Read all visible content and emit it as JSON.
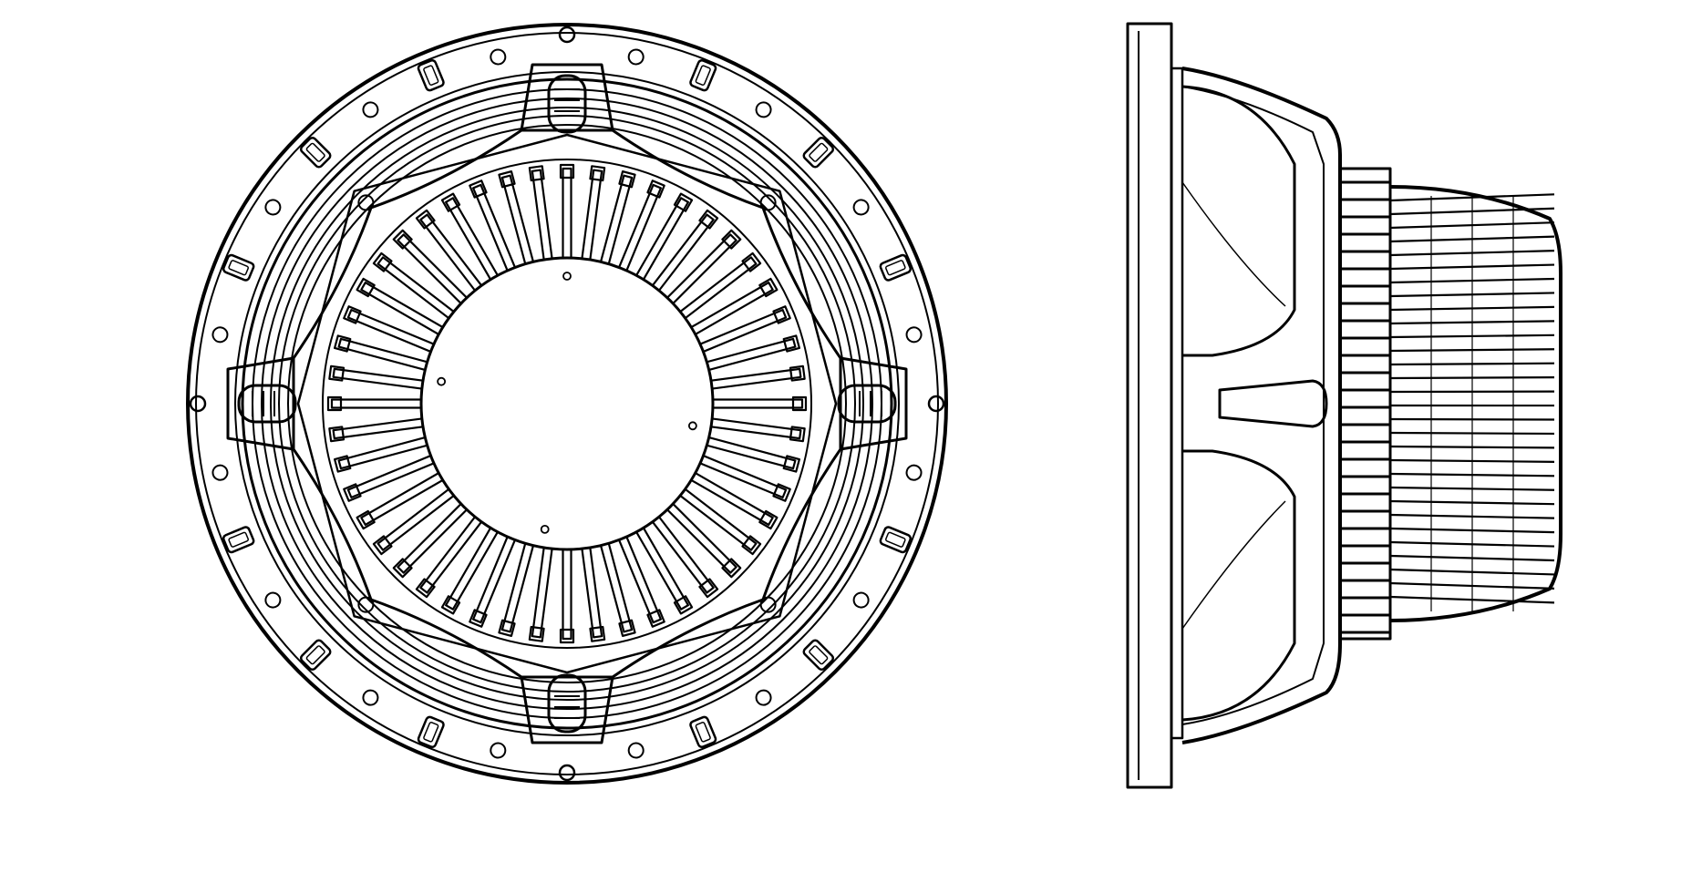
{
  "drawing": {
    "views": [
      "front-view",
      "side-view"
    ],
    "line_color": "#000000",
    "background": "#ffffff"
  }
}
